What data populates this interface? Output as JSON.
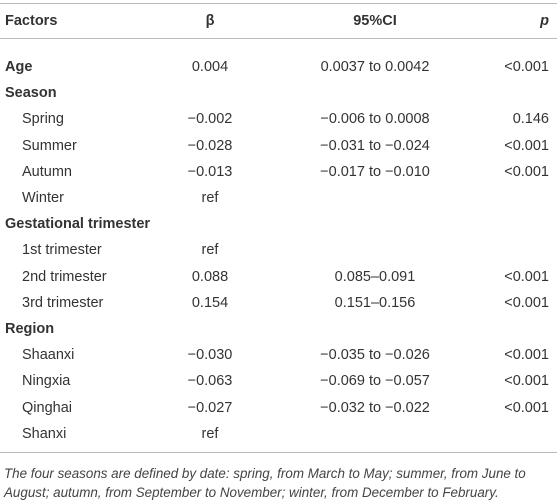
{
  "table": {
    "header": [
      "Factors",
      "β",
      "95%CI",
      "p"
    ],
    "rows": [
      {
        "factor": "Age",
        "group": true,
        "beta": "0.004",
        "ci": "0.0037 to 0.0042",
        "p": "<0.001"
      },
      {
        "factor": "Season",
        "group": true
      },
      {
        "factor": "Spring",
        "beta": "−0.002",
        "ci": "−0.006 to 0.0008",
        "p": "0.146"
      },
      {
        "factor": "Summer",
        "beta": "−0.028",
        "ci": "−0.031 to −0.024",
        "p": "<0.001"
      },
      {
        "factor": "Autumn",
        "beta": "−0.013",
        "ci": "−0.017 to −0.010",
        "p": "<0.001"
      },
      {
        "factor": "Winter",
        "beta": "ref"
      },
      {
        "factor": "Gestational trimester",
        "group": true
      },
      {
        "factor": "1st trimester",
        "beta": "ref"
      },
      {
        "factor": "2nd trimester",
        "beta": "0.088",
        "ci": "0.085–0.091",
        "p": "<0.001"
      },
      {
        "factor": "3rd trimester",
        "beta": "0.154",
        "ci": "0.151–0.156",
        "p": "<0.001"
      },
      {
        "factor": "Region",
        "group": true
      },
      {
        "factor": "Shaanxi",
        "beta": "−0.030",
        "ci": "−0.035 to −0.026",
        "p": "<0.001"
      },
      {
        "factor": "Ningxia",
        "beta": "−0.063",
        "ci": "−0.069 to −0.057",
        "p": "<0.001"
      },
      {
        "factor": "Qinghai",
        "beta": "−0.027",
        "ci": "−0.032 to −0.022",
        "p": "<0.001"
      },
      {
        "factor": "Shanxi",
        "beta": "ref"
      }
    ],
    "footnote": "The four seasons are defined by date: spring, from March to May; summer, from June to August; autumn, from September to November; winter, from December to February."
  }
}
